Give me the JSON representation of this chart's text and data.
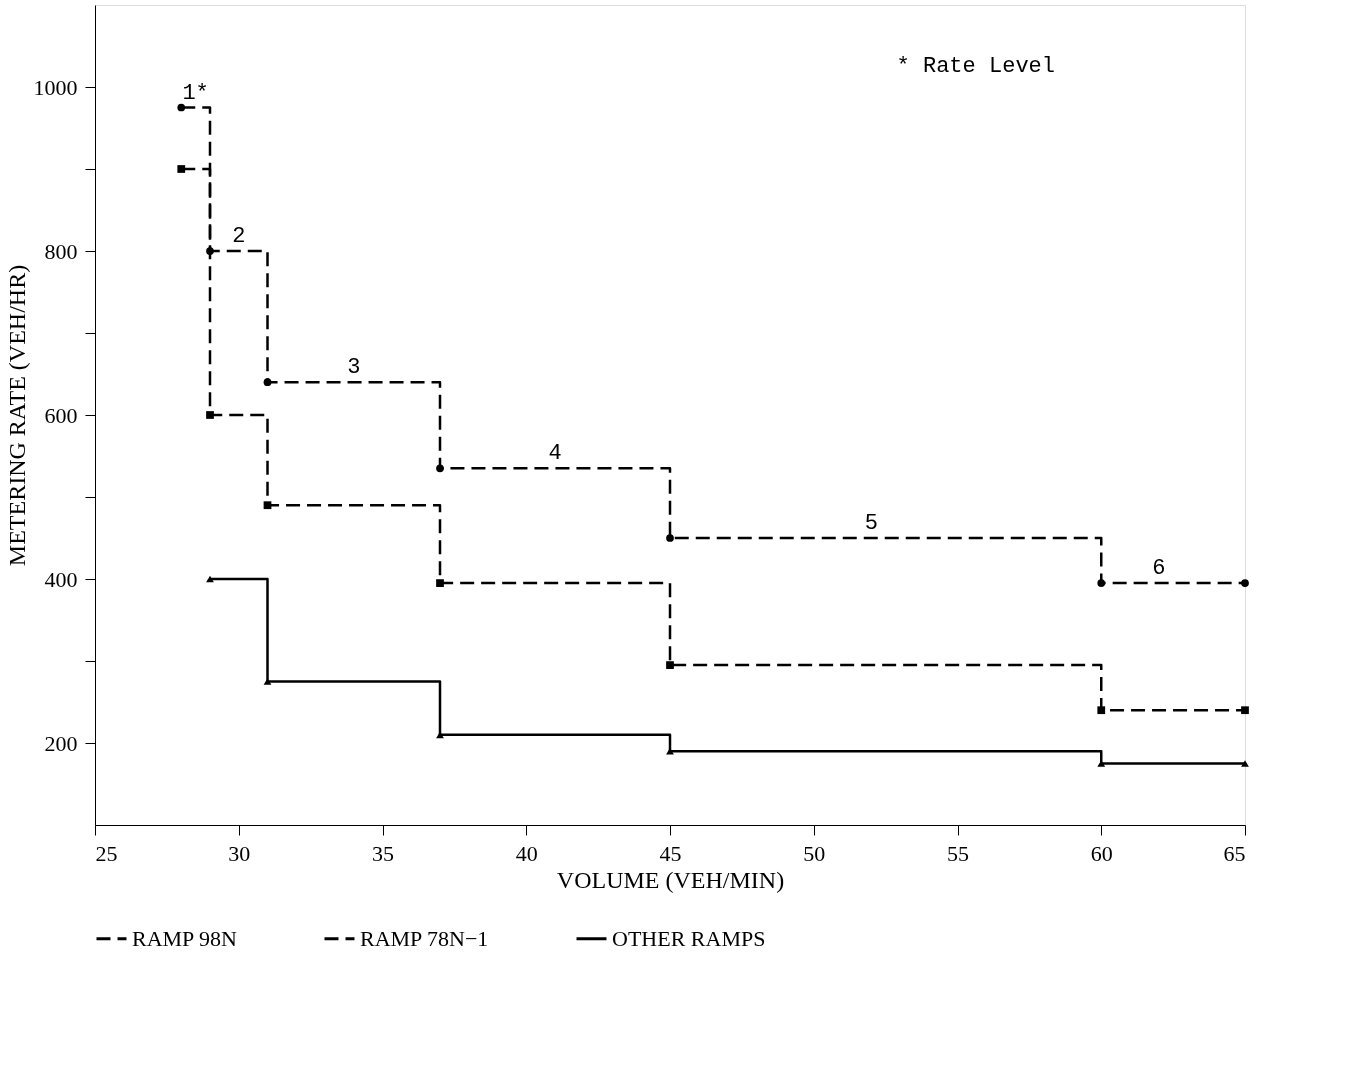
{
  "chart_data": {
    "type": "step",
    "xlabel": "VOLUME (VEH/MIN)",
    "ylabel": "METERING RATE (VEH/HR)",
    "xlim": [
      25,
      65
    ],
    "xticks": [
      25,
      30,
      35,
      40,
      45,
      50,
      55,
      60,
      65
    ],
    "ylim": [
      100,
      1100
    ],
    "yticks": [
      {
        "value": 200,
        "label": "200"
      },
      {
        "value": 300,
        "label": null
      },
      {
        "value": 400,
        "label": "400"
      },
      {
        "value": 500,
        "label": null
      },
      {
        "value": 600,
        "label": "600"
      },
      {
        "value": 700,
        "label": null
      },
      {
        "value": 800,
        "label": "800"
      },
      {
        "value": 900,
        "label": null
      },
      {
        "value": 1000,
        "label": "1000"
      }
    ],
    "grid": false,
    "legend": "bottom",
    "series": [
      {
        "name": "RAMP 98N",
        "color": "#000000",
        "marker": "circle",
        "line_style": "dashed",
        "x": [
          28,
          29,
          31,
          37,
          45,
          60,
          65
        ],
        "values": [
          975,
          800,
          640,
          535,
          450,
          395,
          395
        ]
      },
      {
        "name": "RAMP 78N−1",
        "color": "#000000",
        "marker": "square",
        "line_style": "dashed",
        "x": [
          28,
          29,
          31,
          37,
          45,
          60,
          65
        ],
        "values": [
          900,
          600,
          490,
          395,
          295,
          240,
          240
        ]
      },
      {
        "name": "OTHER RAMPS",
        "color": "#000000",
        "marker": "triangle",
        "line_style": "solid",
        "x": [
          29,
          31,
          37,
          45,
          60,
          65
        ],
        "values": [
          400,
          275,
          210,
          190,
          175,
          175
        ]
      }
    ],
    "annotations": [
      {
        "text": "1*",
        "x": 28.5,
        "y": 975
      },
      {
        "text": "2",
        "x": 30,
        "y": 800
      },
      {
        "text": "3",
        "x": 34,
        "y": 640
      },
      {
        "text": "4",
        "x": 41,
        "y": 535
      },
      {
        "text": "5",
        "x": 52,
        "y": 450
      },
      {
        "text": "6",
        "x": 62,
        "y": 395
      },
      "* Rate Level"
    ]
  }
}
